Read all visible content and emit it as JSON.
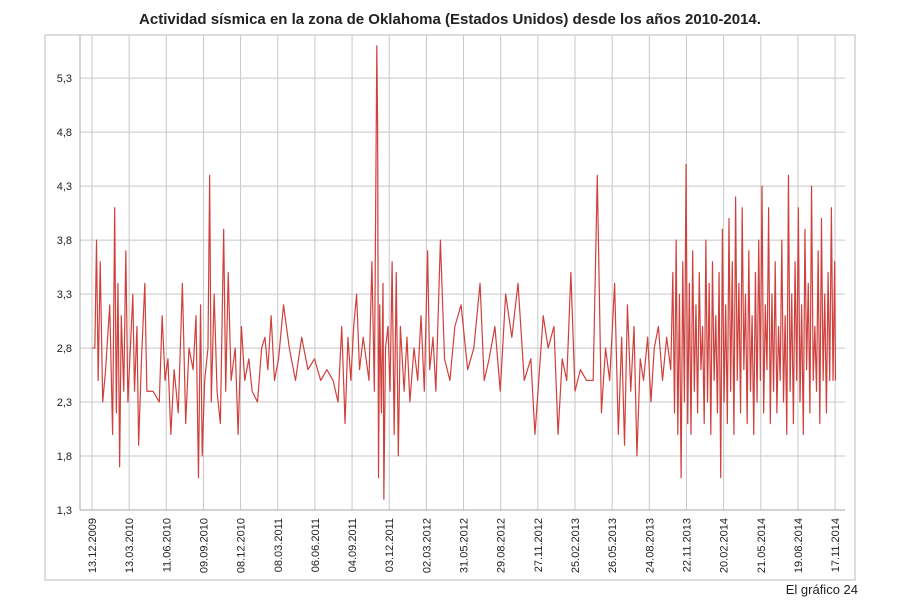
{
  "chart_data": {
    "type": "line",
    "title": "Actividad sísmica en la zona de Oklahoma (Estados Unidos) desde los años 2010-2014.",
    "footer": "El gráfico 24",
    "color": "#d0403c",
    "grid": true,
    "xlim": [
      "14.11.2009",
      "11.12.2014"
    ],
    "xticks": [
      "13.12.2009",
      "13.03.2010",
      "11.06.2010",
      "09.09.2010",
      "08.12.2010",
      "08.03.2011",
      "06.06.2011",
      "04.09.2011",
      "03.12.2011",
      "02.03.2012",
      "31.05.2012",
      "29.08.2012",
      "27.11.2012",
      "25.02.2013",
      "26.05.2013",
      "24.08.2013",
      "22.11.2013",
      "20.02.2014",
      "21.05.2014",
      "19.08.2014",
      "17.11.2014"
    ],
    "ylim": [
      1.3,
      5.7
    ],
    "yticks": [
      {
        "value": 1.3,
        "label": "1,3"
      },
      {
        "value": 1.8,
        "label": "1,8"
      },
      {
        "value": 2.3,
        "label": "2,3"
      },
      {
        "value": 2.8,
        "label": "2,8"
      },
      {
        "value": 3.3,
        "label": "3,3"
      },
      {
        "value": 3.8,
        "label": "3,8"
      },
      {
        "value": 4.3,
        "label": "4,3"
      },
      {
        "value": 4.8,
        "label": "4,8"
      },
      {
        "value": 5.3,
        "label": "5,3"
      }
    ],
    "x": [
      "13.12.2009",
      "20.12.2009",
      "24.12.2009",
      "28.12.2009",
      "02.01.2010",
      "08.01.2010",
      "15.01.2010",
      "25.01.2010",
      "01.02.2010",
      "06.02.2010",
      "10.02.2010",
      "14.02.2010",
      "18.02.2010",
      "22.02.2010",
      "28.02.2010",
      "05.03.2010",
      "10.03.2010",
      "16.03.2010",
      "22.03.2010",
      "26.03.2010",
      "01.04.2010",
      "05.04.2010",
      "12.04.2010",
      "20.04.2010",
      "25.04.2010",
      "10.05.2010",
      "25.05.2010",
      "01.06.2010",
      "08.06.2010",
      "15.06.2010",
      "22.06.2010",
      "30.06.2010",
      "10.07.2010",
      "20.07.2010",
      "28.07.2010",
      "05.08.2010",
      "15.08.2010",
      "22.08.2010",
      "28.08.2010",
      "02.09.2010",
      "06.09.2010",
      "12.09.2010",
      "20.09.2010",
      "24.09.2010",
      "28.09.2010",
      "05.10.2010",
      "12.10.2010",
      "20.10.2010",
      "28.10.2010",
      "02.11.2010",
      "08.11.2010",
      "15.11.2010",
      "25.11.2010",
      "02.12.2010",
      "10.12.2010",
      "18.12.2010",
      "28.12.2010",
      "05.01.2011",
      "18.01.2011",
      "28.01.2011",
      "05.02.2011",
      "12.02.2011",
      "20.02.2011",
      "28.02.2011",
      "10.03.2011",
      "22.03.2011",
      "05.04.2011",
      "20.04.2011",
      "05.05.2011",
      "20.05.2011",
      "05.06.2011",
      "20.06.2011",
      "05.07.2011",
      "20.07.2011",
      "01.08.2011",
      "10.08.2011",
      "18.08.2011",
      "25.08.2011",
      "01.09.2011",
      "08.09.2011",
      "15.09.2011",
      "22.09.2011",
      "01.10.2011",
      "08.10.2011",
      "15.10.2011",
      "22.10.2011",
      "28.10.2011",
      "03.11.2011",
      "05.11.2011",
      "07.11.2011",
      "10.11.2011",
      "14.11.2011",
      "18.11.2011",
      "20.11.2011",
      "24.11.2011",
      "30.11.2011",
      "05.12.2011",
      "10.12.2011",
      "15.12.2011",
      "20.12.2011",
      "25.12.2011",
      "30.12.2011",
      "08.01.2012",
      "15.01.2012",
      "22.01.2012",
      "01.02.2012",
      "10.02.2012",
      "18.02.2012",
      "26.02.2012",
      "05.03.2012",
      "10.03.2012",
      "18.03.2012",
      "25.03.2012",
      "05.04.2012",
      "15.04.2012",
      "28.04.2012",
      "10.05.2012",
      "25.05.2012",
      "10.06.2012",
      "25.06.2012",
      "10.07.2012",
      "20.07.2012",
      "01.08.2012",
      "15.08.2012",
      "28.08.2012",
      "10.09.2012",
      "25.09.2012",
      "10.10.2012",
      "25.10.2012",
      "10.11.2012",
      "20.11.2012",
      "01.12.2012",
      "10.12.2012",
      "22.12.2012",
      "05.01.2013",
      "15.01.2013",
      "25.01.2013",
      "05.02.2013",
      "15.02.2013",
      "25.02.2013",
      "10.03.2013",
      "25.03.2013",
      "10.04.2013",
      "20.04.2013",
      "30.04.2013",
      "10.05.2013",
      "20.05.2013",
      "01.06.2013",
      "10.06.2013",
      "18.06.2013",
      "25.06.2013",
      "02.07.2013",
      "10.07.2013",
      "18.07.2013",
      "25.07.2013",
      "02.08.2013",
      "10.08.2013",
      "20.08.2013",
      "28.08.2013",
      "05.09.2013",
      "15.09.2013",
      "25.09.2013",
      "05.10.2013",
      "15.10.2013",
      "20.10.2013",
      "24.10.2013",
      "28.10.2013",
      "01.11.2013",
      "05.11.2013",
      "09.11.2013",
      "13.11.2013",
      "17.11.2013",
      "21.11.2013",
      "25.11.2013",
      "29.11.2013",
      "03.12.2013",
      "07.12.2013",
      "11.12.2013",
      "15.12.2013",
      "19.12.2013",
      "23.12.2013",
      "27.12.2013",
      "31.12.2013",
      "04.01.2014",
      "08.01.2014",
      "12.01.2014",
      "16.01.2014",
      "20.01.2014",
      "24.01.2014",
      "28.01.2014",
      "01.02.2014",
      "05.02.2014",
      "09.02.2014",
      "13.02.2014",
      "17.02.2014",
      "21.02.2014",
      "25.02.2014",
      "01.03.2014",
      "05.03.2014",
      "09.03.2014",
      "13.03.2014",
      "17.03.2014",
      "21.03.2014",
      "25.03.2014",
      "29.03.2014",
      "02.04.2014",
      "06.04.2014",
      "10.04.2014",
      "14.04.2014",
      "18.04.2014",
      "22.04.2014",
      "26.04.2014",
      "30.04.2014",
      "04.05.2014",
      "08.05.2014",
      "12.05.2014",
      "16.05.2014",
      "20.05.2014",
      "24.05.2014",
      "28.05.2014",
      "01.06.2014",
      "05.06.2014",
      "09.06.2014",
      "13.06.2014",
      "17.06.2014",
      "21.06.2014",
      "25.06.2014",
      "29.06.2014",
      "03.07.2014",
      "07.07.2014",
      "11.07.2014",
      "15.07.2014",
      "19.07.2014",
      "23.07.2014",
      "27.07.2014",
      "31.07.2014",
      "04.08.2014",
      "08.08.2014",
      "12.08.2014",
      "16.08.2014",
      "20.08.2014",
      "24.08.2014",
      "28.08.2014",
      "01.09.2014",
      "05.09.2014",
      "09.09.2014",
      "13.09.2014",
      "17.09.2014",
      "21.09.2014",
      "25.09.2014",
      "29.09.2014",
      "03.10.2014",
      "07.10.2014",
      "11.10.2014",
      "15.10.2014",
      "19.10.2014",
      "23.10.2014",
      "27.10.2014",
      "31.10.2014",
      "04.11.2014",
      "08.11.2014",
      "12.11.2014",
      "16.11.2014",
      "18.11.2014"
    ],
    "values": [
      2.8,
      2.8,
      3.8,
      2.5,
      3.6,
      2.3,
      2.6,
      3.2,
      2.0,
      4.1,
      2.2,
      3.4,
      1.7,
      3.1,
      2.4,
      3.7,
      2.3,
      2.8,
      3.3,
      2.4,
      3.0,
      1.9,
      2.7,
      3.4,
      2.4,
      2.4,
      2.3,
      3.1,
      2.5,
      2.7,
      2.0,
      2.6,
      2.2,
      3.4,
      2.1,
      2.8,
      2.6,
      3.1,
      1.6,
      3.2,
      1.8,
      2.5,
      2.8,
      4.4,
      2.3,
      3.3,
      2.4,
      2.1,
      3.9,
      2.4,
      3.5,
      2.5,
      2.8,
      2.0,
      3.0,
      2.5,
      2.7,
      2.4,
      2.3,
      2.8,
      2.9,
      2.6,
      3.1,
      2.5,
      2.7,
      3.2,
      2.8,
      2.5,
      2.9,
      2.6,
      2.7,
      2.5,
      2.6,
      2.5,
      2.3,
      3.0,
      2.1,
      2.9,
      2.5,
      3.0,
      3.3,
      2.6,
      2.9,
      2.7,
      2.5,
      3.6,
      2.4,
      5.6,
      4.8,
      1.6,
      3.2,
      2.2,
      3.4,
      1.4,
      2.8,
      3.0,
      2.4,
      3.6,
      2.0,
      3.5,
      1.8,
      3.0,
      2.4,
      2.9,
      2.3,
      2.8,
      2.5,
      3.1,
      2.4,
      3.7,
      2.6,
      2.9,
      2.4,
      3.8,
      2.7,
      2.5,
      3.0,
      3.2,
      2.6,
      2.8,
      3.4,
      2.5,
      2.7,
      3.0,
      2.4,
      3.3,
      2.9,
      3.4,
      2.5,
      2.7,
      2.0,
      2.6,
      3.1,
      2.8,
      3.0,
      2.0,
      2.7,
      2.5,
      3.5,
      2.4,
      2.6,
      2.5,
      2.5,
      4.4,
      2.2,
      2.8,
      2.5,
      3.4,
      2.0,
      2.9,
      1.9,
      3.2,
      2.4,
      3.0,
      1.8,
      2.7,
      2.5,
      2.9,
      2.3,
      2.8,
      3.0,
      2.5,
      2.9,
      2.6,
      3.5,
      2.2,
      3.8,
      2.0,
      3.3,
      1.6,
      3.6,
      2.3,
      4.5,
      2.1,
      3.4,
      2.0,
      3.7,
      2.4,
      3.2,
      2.2,
      3.5,
      2.6,
      3.0,
      2.1,
      3.8,
      2.3,
      3.4,
      2.0,
      3.6,
      2.5,
      3.1,
      2.2,
      3.5,
      1.6,
      3.9,
      2.3,
      3.2,
      2.1,
      4.0,
      2.4,
      3.6,
      2.0,
      4.2,
      2.5,
      3.4,
      2.2,
      4.1,
      2.6,
      3.3,
      2.1,
      3.7,
      2.4,
      3.1,
      2.0,
      3.5,
      2.3,
      3.8,
      2.5,
      4.3,
      2.2,
      3.2,
      2.6,
      4.1,
      2.1,
      3.3,
      2.4,
      3.6,
      2.2,
      3.0,
      2.5,
      3.8,
      2.3,
      3.1,
      2.0,
      4.4,
      2.4,
      3.3,
      2.1,
      3.6,
      2.5,
      4.1,
      2.3,
      3.2,
      2.0,
      3.9,
      2.6,
      3.4,
      2.2,
      4.3,
      2.5,
      3.0,
      2.4,
      3.7,
      2.1,
      4.0,
      2.5,
      3.3,
      2.2,
      3.5,
      2.5,
      4.1,
      2.5,
      3.6,
      2.5
    ]
  }
}
